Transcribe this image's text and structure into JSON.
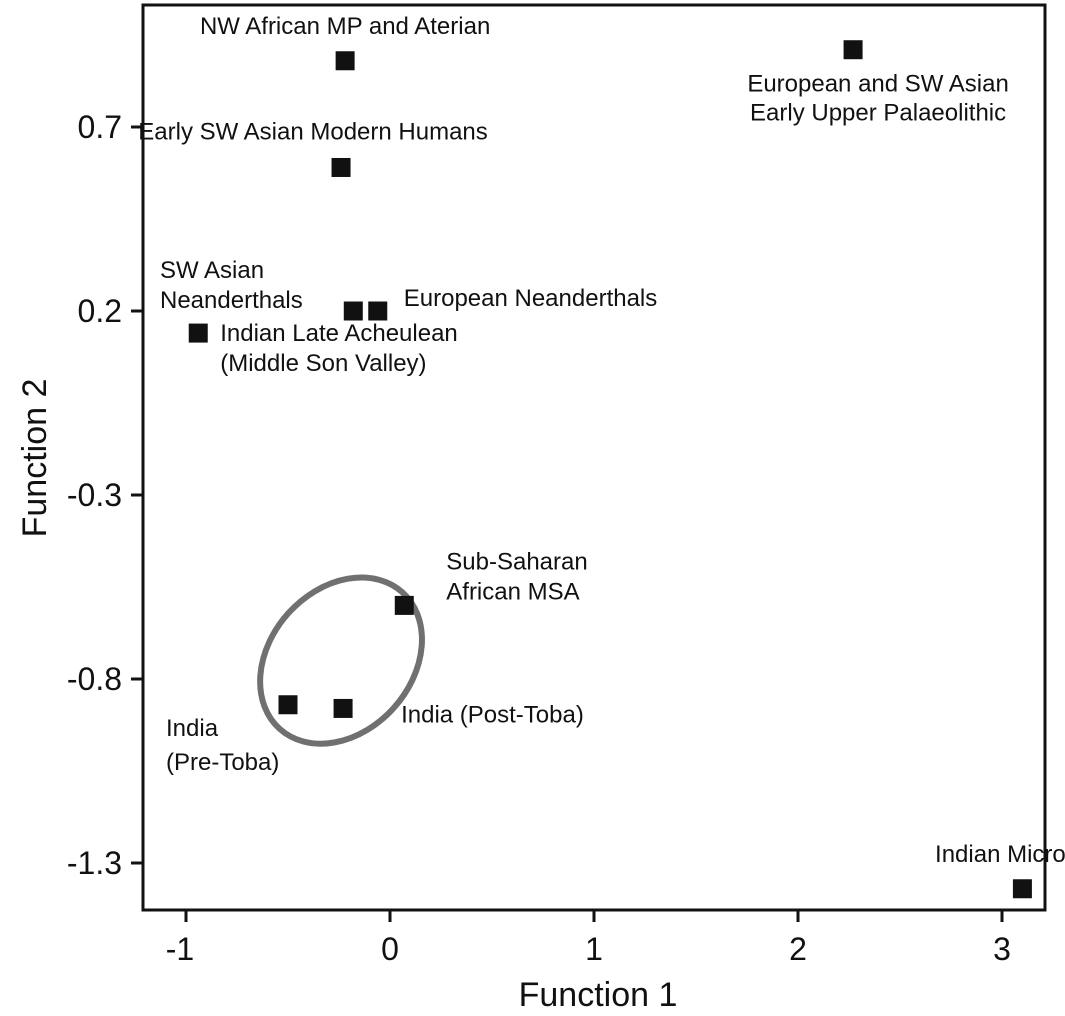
{
  "chart_data": {
    "type": "scatter",
    "title": "",
    "xlabel": "Function 1",
    "ylabel": "Function 2",
    "xlim": [
      -1.2,
      3.2
    ],
    "ylim": [
      -1.42,
      0.95
    ],
    "x_ticks": [
      "-1",
      "0",
      "1",
      "2",
      "3"
    ],
    "y_ticks": [
      "0.7",
      "0.2",
      "-0.3",
      "-0.8",
      "-1.3"
    ],
    "grid": false,
    "legend": "none",
    "marker_color": "#111111",
    "ellipse_color": "#707070",
    "points": [
      {
        "label": [
          "NW African MP and Aterian"
        ],
        "x": -0.22,
        "y": 0.88
      },
      {
        "label": [
          "European and SW Asian",
          "Early Upper Palaeolithic"
        ],
        "x": 2.27,
        "y": 0.91
      },
      {
        "label": [
          "Early SW Asian Modern Humans"
        ],
        "x": -0.24,
        "y": 0.59
      },
      {
        "label": [
          "SW Asian",
          "Neanderthals"
        ],
        "x": -0.18,
        "y": 0.2
      },
      {
        "label": [
          "European Neanderthals"
        ],
        "x": -0.06,
        "y": 0.2
      },
      {
        "label": [
          "Indian Late Acheulean",
          "(Middle Son Valley)"
        ],
        "x": -0.94,
        "y": 0.14
      },
      {
        "label": [
          "Sub-Saharan",
          "African MSA"
        ],
        "x": 0.07,
        "y": -0.6
      },
      {
        "label": [
          "India",
          "(Pre-Toba)"
        ],
        "x": -0.5,
        "y": -0.87
      },
      {
        "label": [
          "India (Post-Toba)"
        ],
        "x": -0.23,
        "y": -0.88
      },
      {
        "label": [
          "Indian Microlithic"
        ],
        "x": 3.1,
        "y": -1.37
      }
    ],
    "ellipse": {
      "cx": -0.24,
      "cy": -0.75,
      "rx": 0.45,
      "ry": 0.18,
      "rotation_deg": -48
    }
  }
}
